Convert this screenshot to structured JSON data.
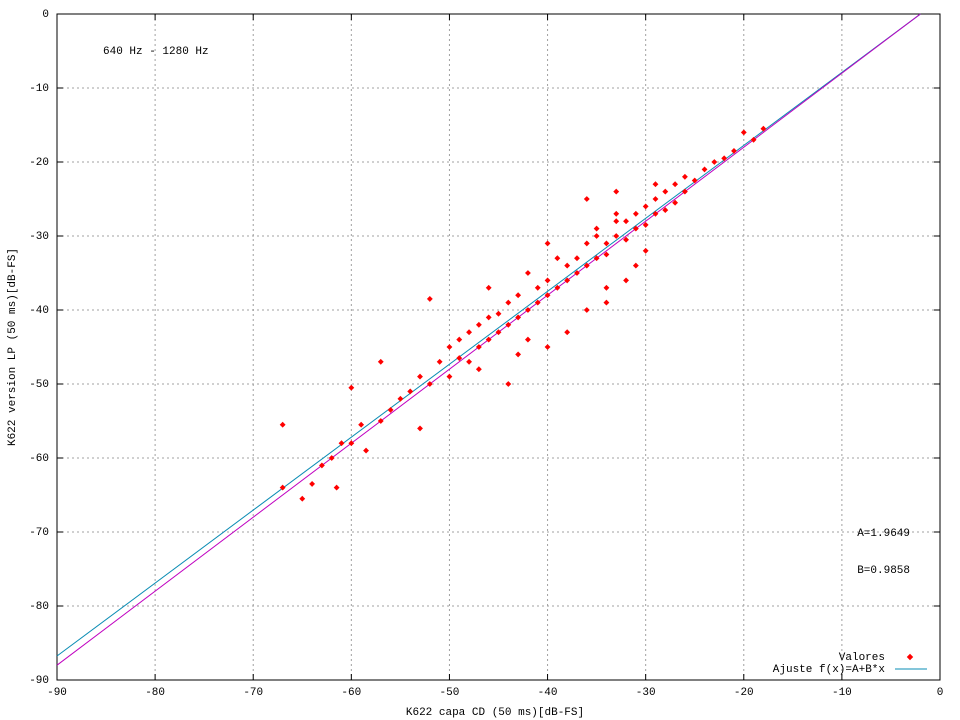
{
  "chart_data": {
    "type": "scatter",
    "xlabel": "K622 capa CD (50 ms)[dB-FS]",
    "ylabel": "K622 version LP (50 ms)[dB-FS]",
    "annotations": [
      "640 Hz - 1280 Hz",
      "A=1.9649",
      "B=0.9858"
    ],
    "xlim": [
      -90,
      0
    ],
    "ylim": [
      -90,
      0
    ],
    "xticks": [
      -90,
      -80,
      -70,
      -60,
      -50,
      -40,
      -30,
      -20,
      -10,
      0
    ],
    "yticks": [
      -90,
      -80,
      -70,
      -60,
      -50,
      -40,
      -30,
      -20,
      -10,
      0
    ],
    "grid": true,
    "legend": "bottom right",
    "series": [
      {
        "name": "Valores",
        "color": "#ff0000",
        "x": [
          -67,
          -67,
          -65,
          -64,
          -63,
          -62,
          -61.5,
          -61,
          -60,
          -60,
          -59,
          -58.5,
          -57,
          -57,
          -56,
          -55,
          -54,
          -53,
          -52,
          -52,
          -51,
          -50,
          -50,
          -49,
          -49,
          -48,
          -48,
          -47,
          -47,
          -46,
          -46,
          -45,
          -45,
          -44,
          -44,
          -44,
          -43,
          -43,
          -42,
          -42,
          -42,
          -41,
          -41,
          -40,
          -40,
          -40,
          -39,
          -39,
          -38,
          -38,
          -38,
          -37,
          -37,
          -36,
          -36,
          -36,
          -35,
          -35,
          -35,
          -34,
          -34,
          -34,
          -33,
          -33,
          -33,
          -32,
          -32,
          -32,
          -31,
          -31,
          -30,
          -30,
          -30,
          -29,
          -29,
          -28,
          -28,
          -27,
          -27,
          -26,
          -26,
          -25,
          -24,
          -23,
          -22,
          -21,
          -20,
          -19,
          -18,
          -33,
          -34,
          -31,
          -29,
          -46,
          -47,
          -53,
          -40,
          -36,
          -43
        ],
        "y": [
          -55.5,
          -64,
          -65.5,
          -63.5,
          -61,
          -60,
          -64,
          -58,
          -58,
          -50.5,
          -55.5,
          -59,
          -47,
          -55,
          -53.5,
          -52,
          -51,
          -49,
          -38.5,
          -50,
          -47,
          -45,
          -49,
          -44,
          -46.5,
          -43,
          -47,
          -42,
          -45,
          -44,
          -41,
          -40.5,
          -43,
          -39,
          -42,
          -50,
          -38,
          -41,
          -40,
          -35,
          -44,
          -37,
          -39,
          -36,
          -38,
          -45,
          -33,
          -37,
          -34,
          -36,
          -43,
          -33,
          -35,
          -31,
          -34,
          -40,
          -30,
          -33,
          -29,
          -31,
          -32.5,
          -37,
          -28,
          -30,
          -27,
          -28,
          -30.5,
          -36,
          -27,
          -29,
          -26,
          -28.5,
          -32,
          -25,
          -27,
          -24,
          -26.5,
          -23,
          -25.5,
          -22,
          -24,
          -22.5,
          -21,
          -20,
          -19.5,
          -18.5,
          -16,
          -17,
          -15.5,
          -24,
          -39,
          -34,
          -23,
          -37,
          -48,
          -56,
          -31,
          -25,
          -46
        ]
      }
    ],
    "lines": [
      {
        "name": "Ajuste f(x)=A+B*x",
        "color": "#0a8cb4",
        "x": [
          -90,
          -2
        ],
        "y": [
          -86.76,
          -0.01
        ]
      },
      {
        "color": "#c000c0",
        "x": [
          -90,
          -2
        ],
        "y": [
          -88,
          0
        ]
      }
    ]
  }
}
